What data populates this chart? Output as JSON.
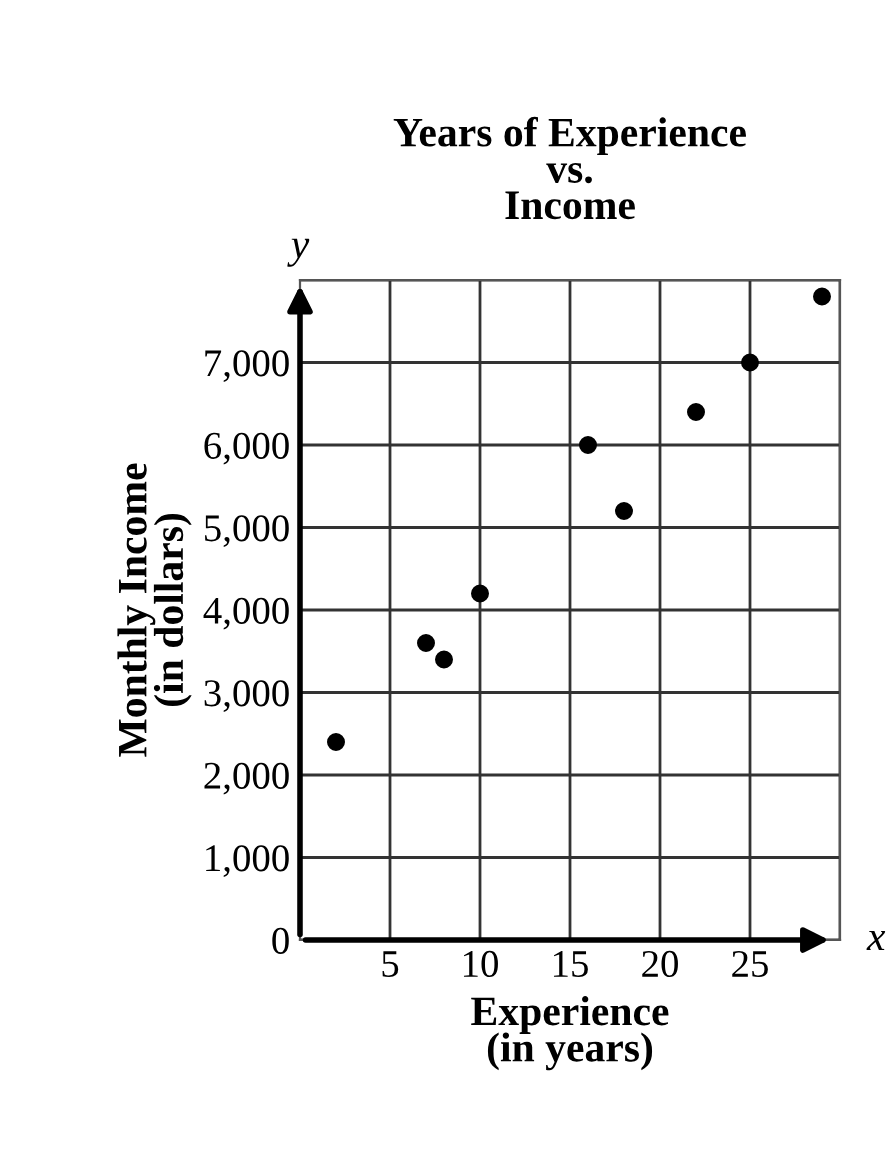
{
  "chart_data": {
    "type": "scatter",
    "title": "Years of Experience\nvs.\nIncome",
    "xlabel": "Experience\n(in years)",
    "ylabel": "Monthly Income\n(in dollars)",
    "x": [
      2,
      7,
      8,
      10,
      16,
      18,
      22,
      25,
      29
    ],
    "values": [
      2400,
      3600,
      3400,
      4200,
      6000,
      5200,
      6400,
      7000,
      7800
    ],
    "color": "#000000",
    "marker": "circle",
    "xlim": [
      0,
      30
    ],
    "ylim": [
      0,
      8000
    ],
    "xticks": [
      5,
      10,
      15,
      20,
      25,
      {
        "value": 30,
        "label": null
      }
    ],
    "yticks": [
      {
        "value": 0,
        "label": "0"
      },
      {
        "value": 1000,
        "label": "1,000"
      },
      {
        "value": 2000,
        "label": "2,000"
      },
      {
        "value": 3000,
        "label": "3,000"
      },
      {
        "value": 4000,
        "label": "4,000"
      },
      {
        "value": 5000,
        "label": "5,000"
      },
      {
        "value": 6000,
        "label": "6,000"
      },
      {
        "value": 7000,
        "label": "7,000"
      },
      {
        "value": 8000,
        "label": null
      }
    ],
    "grid": true,
    "annotations": [
      "y",
      "x"
    ]
  }
}
